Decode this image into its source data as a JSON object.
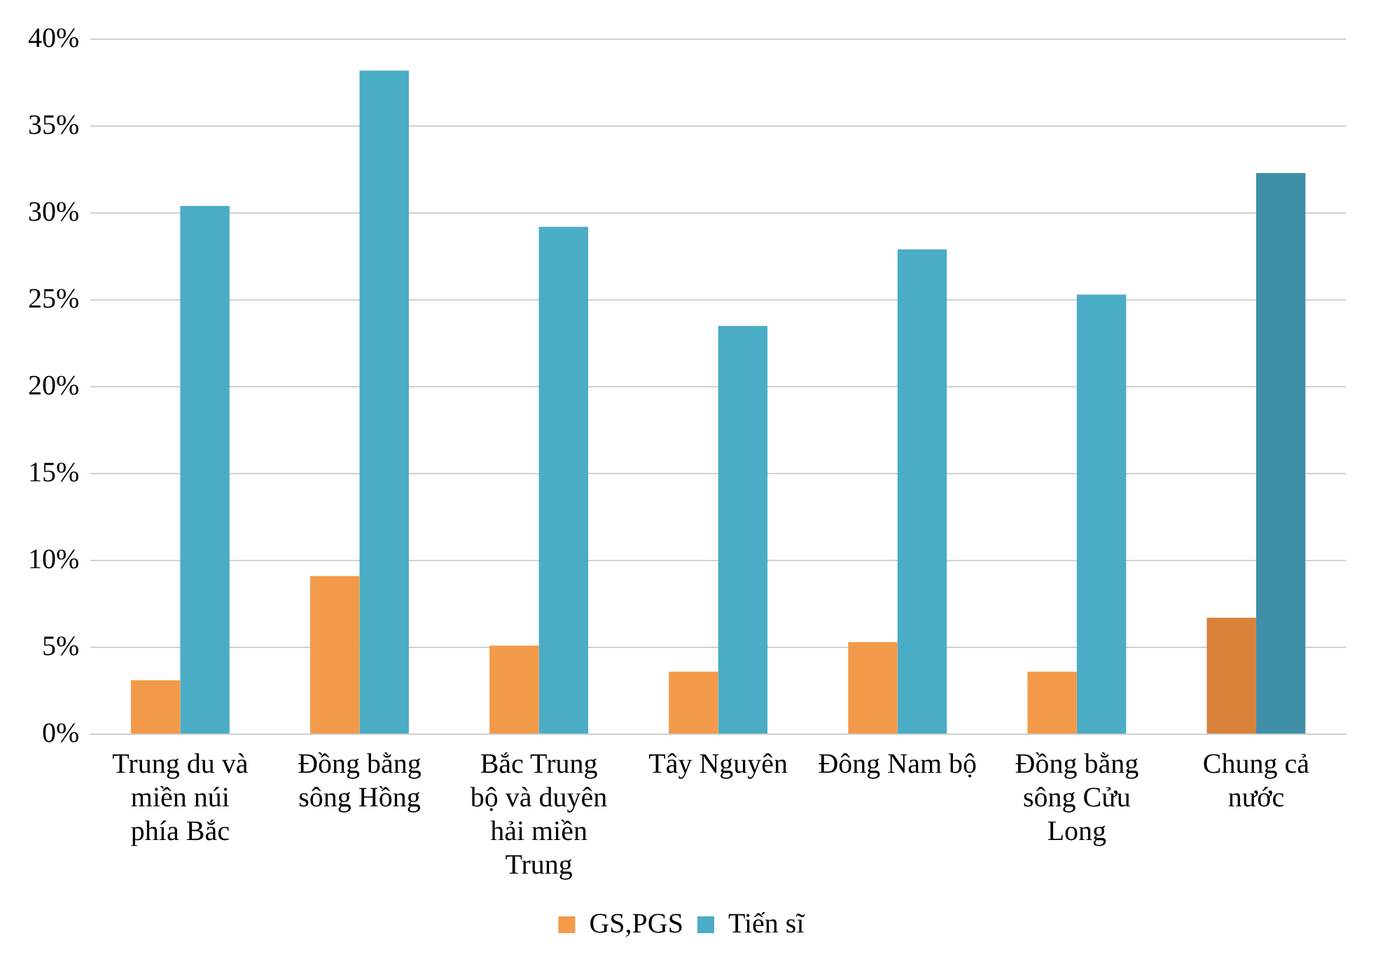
{
  "chart_data": {
    "type": "bar",
    "categories": [
      "Trung du và miền núi phía Bắc",
      "Đồng bằng sông Hồng",
      "Bắc Trung bộ và duyên hải miền Trung",
      "Tây Nguyên",
      "Đông Nam bộ",
      "Đồng bằng sông Cửu Long",
      "Chung cả nước"
    ],
    "series": [
      {
        "name": "GS,PGS",
        "color": "#f29a4a",
        "colors": [
          "#f29a4a",
          "#f29a4a",
          "#f29a4a",
          "#f29a4a",
          "#f29a4a",
          "#f29a4a",
          "#d9823a"
        ],
        "values": [
          3.1,
          9.1,
          5.1,
          3.6,
          5.3,
          3.6,
          6.7
        ]
      },
      {
        "name": "Tiến sĩ",
        "color": "#4bacc6",
        "colors": [
          "#4bacc6",
          "#4bacc6",
          "#4bacc6",
          "#4bacc6",
          "#4bacc6",
          "#4bacc6",
          "#3f8fa8"
        ],
        "values": [
          30.4,
          38.2,
          29.2,
          23.5,
          27.9,
          25.3,
          32.3
        ]
      }
    ],
    "ylim": [
      0,
      40
    ],
    "yticks": [
      {
        "value": 0,
        "label": "0%"
      },
      {
        "value": 5,
        "label": "5%"
      },
      {
        "value": 10,
        "label": "10%"
      },
      {
        "value": 15,
        "label": "15%"
      },
      {
        "value": 20,
        "label": "20%"
      },
      {
        "value": 25,
        "label": "25%"
      },
      {
        "value": 30,
        "label": "30%"
      },
      {
        "value": 35,
        "label": "35%"
      },
      {
        "value": 40,
        "label": "40%"
      }
    ],
    "grid": "y",
    "legend": "bottom"
  }
}
